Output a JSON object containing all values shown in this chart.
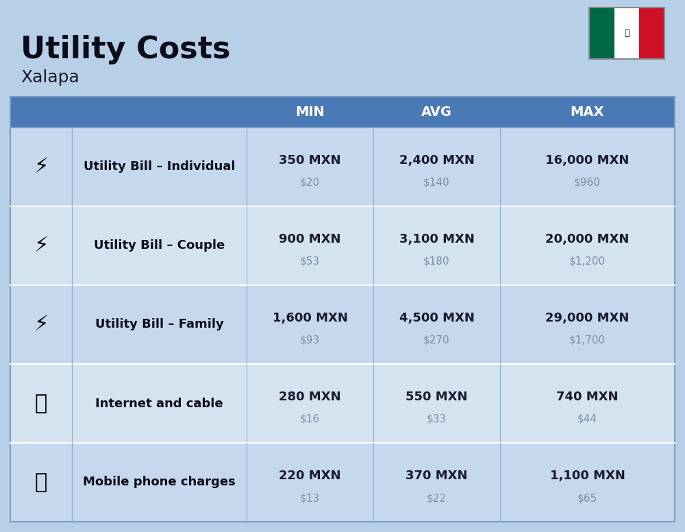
{
  "title": "Utility Costs",
  "subtitle": "Xalapa",
  "background_color": "#b8cfe8",
  "header_bg_color": "#4a7ab5",
  "header_text_color": "#ffffff",
  "row_colors": [
    "#c5d8ed",
    "#d4e3f0"
  ],
  "col_separator_color": "#8aafd4",
  "row_separator_color": "#ffffff",
  "headers": [
    "",
    "",
    "MIN",
    "AVG",
    "MAX"
  ],
  "rows": [
    {
      "label": "Utility Bill – Individual",
      "min_mxn": "350 MXN",
      "min_usd": "$20",
      "avg_mxn": "2,400 MXN",
      "avg_usd": "$140",
      "max_mxn": "16,000 MXN",
      "max_usd": "$960"
    },
    {
      "label": "Utility Bill – Couple",
      "min_mxn": "900 MXN",
      "min_usd": "$53",
      "avg_mxn": "3,100 MXN",
      "avg_usd": "$180",
      "max_mxn": "20,000 MXN",
      "max_usd": "$1,200"
    },
    {
      "label": "Utility Bill – Family",
      "min_mxn": "1,600 MXN",
      "min_usd": "$93",
      "avg_mxn": "4,500 MXN",
      "avg_usd": "$270",
      "max_mxn": "29,000 MXN",
      "max_usd": "$1,700"
    },
    {
      "label": "Internet and cable",
      "min_mxn": "280 MXN",
      "min_usd": "$16",
      "avg_mxn": "550 MXN",
      "avg_usd": "$33",
      "max_mxn": "740 MXN",
      "max_usd": "$44"
    },
    {
      "label": "Mobile phone charges",
      "min_mxn": "220 MXN",
      "min_usd": "$13",
      "avg_mxn": "370 MXN",
      "avg_usd": "$22",
      "max_mxn": "1,100 MXN",
      "max_usd": "$65"
    }
  ],
  "mxn_text_color": "#1a1a2e",
  "usd_text_color": "#7a8fa6",
  "label_text_color": "#0d0d1a",
  "title_color": "#0d0d1a",
  "subtitle_color": "#1a1a2e",
  "flag_colors": [
    "#006847",
    "#ffffff",
    "#ce1126"
  ],
  "icon_emojis": [
    "⚡",
    "⚡",
    "⚡",
    "📶",
    "📱"
  ]
}
